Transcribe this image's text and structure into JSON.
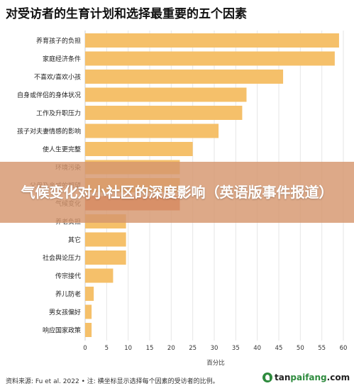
{
  "chart_data": {
    "type": "bar",
    "orientation": "horizontal",
    "title": "对受访者的生育计划和选择最重要的五个因素",
    "xlabel": "百分比",
    "ylabel": "",
    "xlim": [
      0,
      60
    ],
    "xticks": [
      0,
      5,
      10,
      15,
      20,
      25,
      30,
      35,
      40,
      45,
      50,
      55,
      60
    ],
    "grid": true,
    "categories": [
      "养育孩子的负担",
      "家庭经济条件",
      "不喜欢/喜欢小孩",
      "自身或伴侣的身体状况",
      "工作及升职压力",
      "孩子对夫妻情感的影响",
      "使人生更完整",
      "环境污染",
      "父母及亲戚的期望",
      "气候变化",
      "养老负担",
      "其它",
      "社会舆论压力",
      "传宗接代",
      "养儿防老",
      "男女孩偏好",
      "响应国家政策"
    ],
    "values": [
      59,
      58,
      46,
      37.5,
      36.5,
      31,
      25,
      22,
      22,
      22,
      9.5,
      9.5,
      9.5,
      6.5,
      2,
      1.5,
      1.5
    ],
    "colors": {
      "bar": "#f5c06a",
      "highlight": "#e4734f"
    },
    "highlight_index": 9,
    "source": "资料来源: Fu et al. 2022 • 注: 横坐标显示选择每个因素的受访者的比例。"
  },
  "banner": {
    "text": "气候变化对小社区的深度影响（英语版事件报道）"
  },
  "watermark": {
    "prefix": "tan",
    "highlight": "paifang",
    "suffix": ".com"
  }
}
